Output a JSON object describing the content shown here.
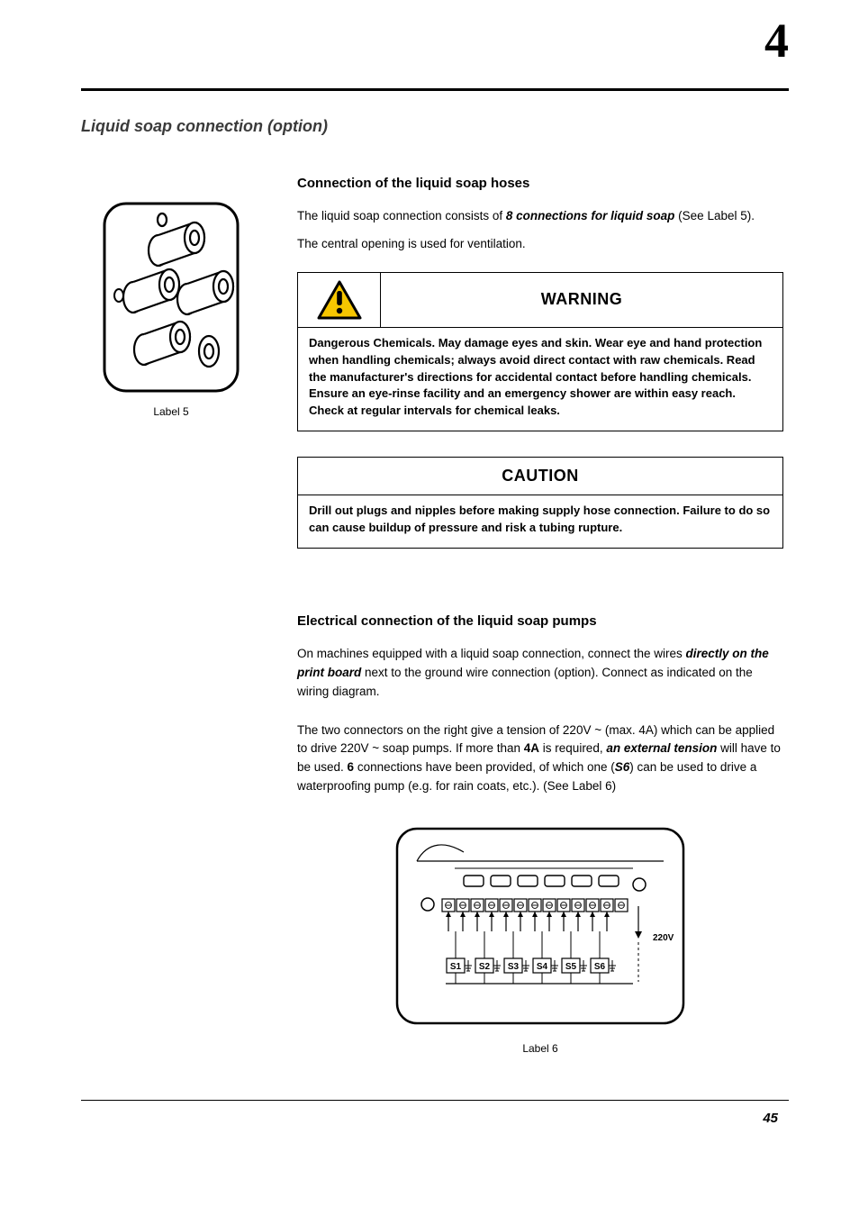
{
  "chapter_number": "4",
  "page_number": "45",
  "section_title": "Liquid soap connection (option)",
  "label5_caption": "Label 5",
  "label6_caption": "Label 6",
  "subhead_hoses": "Connection of the liquid soap hoses",
  "p1_a": "The liquid soap connection consists of ",
  "p1_bold": "8 connections for liquid soap",
  "p1_b": " (See Label 5).",
  "p2": "The central opening is used for ventilation.",
  "warning": {
    "title": "WARNING",
    "body": "Dangerous Chemicals. May damage eyes and skin. Wear eye and hand protection when handling chemicals; always avoid direct contact with raw chemicals. Read the manufacturer's directions for accidental contact before handling chemicals. Ensure an eye-rinse facility and an emergency shower are within easy reach. Check at regular intervals for chemical leaks."
  },
  "caution": {
    "title": "CAUTION",
    "body": "Drill out plugs and nipples before making supply hose connection. Failure to do so can cause buildup of pressure and risk a tubing rupture."
  },
  "subhead_elec": "Electrical connection of the liquid soap pumps",
  "p3_a": "On machines equipped with a liquid soap connection, connect the wires ",
  "p3_bold1": "directly on the print board",
  "p3_b": " next to the ground wire connection (option). Connect as indicated on the wiring diagram.",
  "p4_a": "The two connectors on the right give a tension of 220V ~ (max. 4A) which can be applied to drive 220V ~ soap pumps. If more than ",
  "p4_bold1": "4A",
  "p4_b": " is required, ",
  "p4_bold2": "an external tension",
  "p4_c": " will have to be used. ",
  "p4_bold3": "6",
  "p4_d": " connections have been provided, of which one (",
  "p4_bold4": "S6",
  "p4_e": ") can be used to drive a waterproofing pump (e.g. for rain coats, etc.). (See Label 6)",
  "label6": {
    "voltage": "220V",
    "terminals": [
      "S1",
      "S2",
      "S3",
      "S4",
      "S5",
      "S6"
    ]
  },
  "colors": {
    "warn_border": "#000000",
    "warn_fill_yellow": "#f6c600",
    "text_gray": "#3a3a3a"
  }
}
